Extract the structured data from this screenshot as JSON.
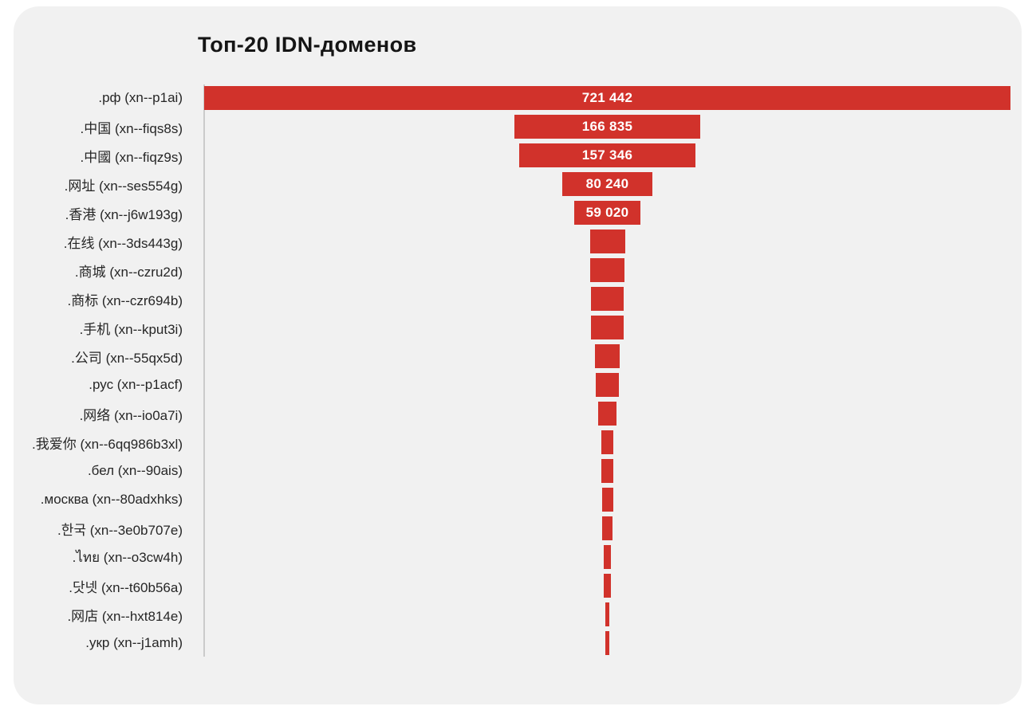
{
  "title": "Топ-20 IDN-доменов",
  "colors": {
    "page_bg": "#ffffff",
    "card_bg": "#f1f1f1",
    "bar": "#d1322b",
    "bar_label": "#ffffff",
    "axis": "#cbcbcb",
    "label_text": "#262626",
    "title_text": "#151515"
  },
  "chart_data": {
    "type": "bar",
    "orientation": "horizontal-centered-funnel",
    "title": "Топ-20 IDN-доменов",
    "grid": false,
    "legend": false,
    "xlim": [
      0,
      721442
    ],
    "categories": [
      ".рф (xn--p1ai)",
      ".中国 (xn--fiqs8s)",
      ".中國 (xn--fiqz9s)",
      ".网址 (xn--ses554g)",
      ".香港 (xn--j6w193g)",
      ".在线 (xn--3ds443g)",
      ".商城 (xn--czru2d)",
      ".商标 (xn--czr694b)",
      ".手机 (xn--kput3i)",
      ".公司 (xn--55qx5d)",
      ".рус (xn--p1acf)",
      ".网络 (xn--io0a7i)",
      ".我爱你 (xn--6qq986b3xl)",
      ".бел (xn--90ais)",
      ".москва (xn--80adxhks)",
      ".한국 (xn--3e0b707e)",
      ".ไทย (xn--o3cw4h)",
      ".닷넷 (xn--t60b56a)",
      ".网店 (xn--hxt814e)",
      ".укр (xn--j1amh)"
    ],
    "values": [
      721442,
      166835,
      157346,
      80240,
      59020,
      31400,
      30100,
      29600,
      29400,
      22100,
      20000,
      17100,
      11100,
      10800,
      10000,
      8800,
      7000,
      6800,
      3700,
      3500
    ],
    "bar_labels": [
      "721 442",
      "166 835",
      "157 346",
      "80 240",
      "59 020",
      "",
      "",
      "",
      "",
      "",
      "",
      "",
      "",
      "",
      "",
      "",
      "",
      "",
      "",
      ""
    ]
  }
}
